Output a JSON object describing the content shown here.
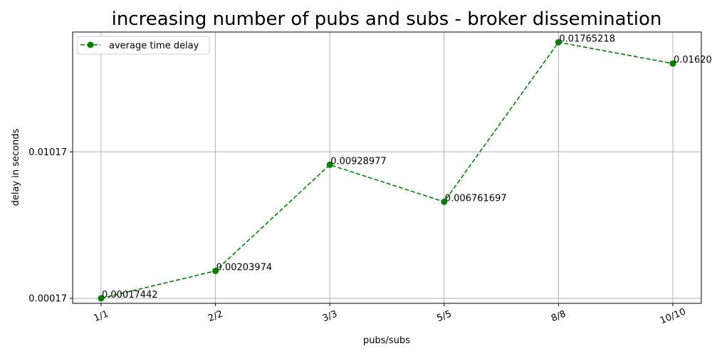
{
  "chart_data": {
    "type": "line",
    "title": "increasing number of pubs and subs - broker dissemination",
    "xlabel": "pubs/subs",
    "ylabel": "delay in seconds",
    "categories": [
      "1/1",
      "2/2",
      "3/3",
      "5/5",
      "8/8",
      "10/10"
    ],
    "y_ticks": [
      {
        "value": 0.00017,
        "label": "0.00017"
      },
      {
        "value": 0.01017,
        "label": "0.01017"
      }
    ],
    "ylim": [
      -0.00017,
      0.01835
    ],
    "grid": true,
    "legend_position": "top-left",
    "series": [
      {
        "name": "average time delay",
        "color": "#008000",
        "line_style": "dashed",
        "marker": "circle",
        "values": [
          0.00017442,
          0.00203974,
          0.00928977,
          0.006761697,
          0.01765218,
          0.0162
        ],
        "labels": [
          "0.00017442",
          "0.00203974",
          "0.00928977",
          "0.006761697",
          "0.01765218",
          "0.01620"
        ]
      }
    ]
  }
}
